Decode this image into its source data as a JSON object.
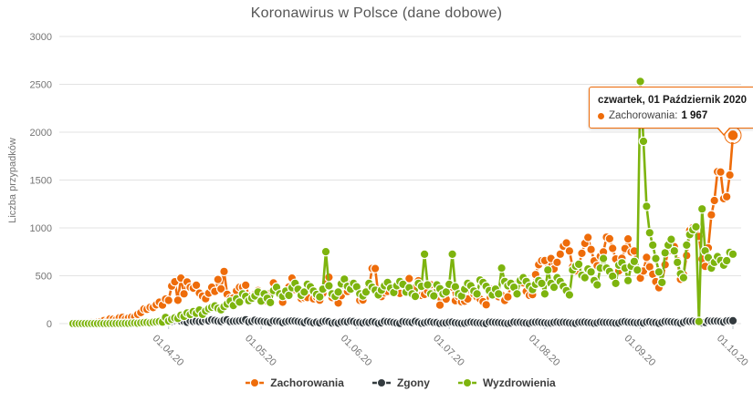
{
  "title": "Koronawirus w Polsce (dane dobowe)",
  "y_axis": {
    "label": "Liczba przypadków",
    "tick_labels": [
      "0",
      "500",
      "1000",
      "1500",
      "2000",
      "2500",
      "3000"
    ]
  },
  "x_axis": {
    "tick_labels": [
      "01.04.20",
      "01.05.20",
      "01.06.20",
      "01.07.20",
      "01.08.20",
      "01.09.20",
      "01.10.20"
    ]
  },
  "legend": [
    {
      "label": "Zachorowania",
      "color": "#ee6c0a"
    },
    {
      "label": "Zgony",
      "color": "#333b3f"
    },
    {
      "label": "Wyzdrowienia",
      "color": "#7db40e"
    }
  ],
  "tooltip": {
    "date_label": "czwartek, 01 Październik 2020",
    "series_label": "Zachorowania:",
    "value": "1 967"
  },
  "colors": {
    "grid": "#e3e3e3",
    "axis_text": "#757575",
    "tick_mark": "#b8c4cc",
    "background": "#ffffff"
  },
  "chart_data": {
    "type": "line",
    "title": "Koronawirus w Polsce (dane dobowe)",
    "ylabel": "Liczba przypadków",
    "xlabel": "",
    "ylim": [
      0,
      3000
    ],
    "grid": true,
    "legend_position": "bottom",
    "start_date": "2020-03-01",
    "end_date": "2020-10-01",
    "x_ticks": [
      {
        "label": "01.04.20",
        "day": 31
      },
      {
        "label": "01.05.20",
        "day": 61
      },
      {
        "label": "01.06.20",
        "day": 92
      },
      {
        "label": "01.07.20",
        "day": 122
      },
      {
        "label": "01.08.20",
        "day": 153
      },
      {
        "label": "01.09.20",
        "day": 184
      },
      {
        "label": "01.10.20",
        "day": 214
      }
    ],
    "highlight": {
      "series": "Zachorowania",
      "date": "2020-10-01",
      "point_index": 214,
      "value": 1967
    },
    "series": [
      {
        "name": "Zachorowania",
        "color": "#ee6c0a",
        "values": [
          0,
          0,
          1,
          2,
          5,
          5,
          11,
          7,
          14,
          20,
          31,
          21,
          49,
          46,
          40,
          61,
          65,
          49,
          59,
          68,
          70,
          96,
          115,
          152,
          150,
          170,
          168,
          196,
          224,
          193,
          256,
          243,
          392,
          437,
          244,
          475,
          311,
          435,
          380,
          370,
          401,
          318,
          288,
          260,
          318,
          380,
          336,
          461,
          363,
          545,
          306,
          263,
          268,
          342,
          380,
          381,
          401,
          285,
          263,
          308,
          346,
          295,
          260,
          235,
          318,
          425,
          340,
          309,
          224,
          345,
          383,
          475,
          356,
          364,
          262,
          270,
          272,
          356,
          259,
          276,
          245,
          315,
          425,
          485,
          272,
          287,
          215,
          292,
          399,
          336,
          412,
          383,
          396,
          243,
          247,
          340,
          380,
          576,
          575,
          300,
          283,
          321,
          336,
          375,
          333,
          388,
          315,
          407,
          326,
          470,
          314,
          375,
          448,
          295,
          305,
          341,
          407,
          290,
          336,
          193,
          301,
          256,
          371,
          381,
          239,
          283,
          228,
          234,
          257,
          355,
          309,
          277,
          257,
          229,
          197,
          336,
          357,
          315,
          281,
          296,
          242,
          279,
          399,
          384,
          418,
          458,
          426,
          337,
          295,
          303,
          512,
          615,
          657,
          658,
          548,
          680,
          571,
          640,
          726,
          809,
          843,
          759,
          594,
          551,
          601,
          734,
          838,
          900,
          774,
          655,
          605,
          704,
          749,
          903,
          887,
          786,
          675,
          551,
          682,
          784,
          885,
          748,
          758,
          563,
          475,
          550,
          691,
          593,
          515,
          438,
          375,
          436,
          615,
          757,
          847,
          804,
          657,
          463,
          512,
          711,
          974,
          1002,
          1012,
          910,
          674,
          598,
          791,
          1136,
          1286,
          1587,
          1584,
          1306,
          1326,
          1552,
          1967
        ]
      },
      {
        "name": "Zgony",
        "color": "#333b3f",
        "values": [
          0,
          0,
          0,
          0,
          0,
          0,
          0,
          0,
          0,
          0,
          0,
          1,
          2,
          1,
          1,
          2,
          1,
          0,
          2,
          2,
          3,
          4,
          2,
          6,
          8,
          6,
          9,
          10,
          11,
          14,
          18,
          18,
          25,
          34,
          40,
          27,
          24,
          14,
          30,
          23,
          27,
          20,
          24,
          38,
          29,
          40,
          32,
          25,
          23,
          36,
          40,
          21,
          25,
          26,
          29,
          32,
          40,
          18,
          24,
          35,
          26,
          25,
          21,
          17,
          12,
          27,
          24,
          22,
          10,
          20,
          26,
          28,
          27,
          22,
          16,
          10,
          25,
          15,
          9,
          14,
          8,
          22,
          26,
          21,
          7,
          11,
          5,
          15,
          20,
          17,
          26,
          22,
          11,
          12,
          8,
          15,
          11,
          19,
          14,
          4,
          9,
          23,
          18,
          17,
          12,
          7,
          3,
          21,
          17,
          14,
          12,
          23,
          14,
          4,
          9,
          15,
          18,
          12,
          11,
          2,
          6,
          8,
          14,
          16,
          9,
          5,
          3,
          5,
          11,
          15,
          12,
          9,
          6,
          4,
          2,
          15,
          14,
          12,
          10,
          8,
          5,
          2,
          7,
          16,
          12,
          13,
          9,
          6,
          3,
          12,
          14,
          16,
          11,
          9,
          5,
          6,
          12,
          15,
          11,
          14,
          12,
          8,
          5,
          3,
          13,
          14,
          16,
          11,
          9,
          4,
          8,
          15,
          13,
          12,
          10,
          9,
          5,
          6,
          17,
          21,
          14,
          13,
          10,
          8,
          11,
          7,
          16,
          19,
          12,
          10,
          4,
          12,
          22,
          21,
          18,
          15,
          11,
          5,
          13,
          25,
          23,
          26,
          20,
          14,
          8,
          12,
          29,
          25,
          27,
          26,
          22,
          16,
          29,
          30,
          30
        ]
      },
      {
        "name": "Wyzdrowienia",
        "color": "#7db40e",
        "values": [
          0,
          0,
          0,
          0,
          0,
          0,
          0,
          0,
          0,
          1,
          0,
          0,
          1,
          1,
          2,
          1,
          1,
          3,
          2,
          5,
          7,
          4,
          8,
          10,
          12,
          9,
          14,
          18,
          22,
          16,
          65,
          28,
          45,
          60,
          54,
          88,
          75,
          110,
          95,
          125,
          108,
          142,
          96,
          132,
          155,
          170,
          185,
          160,
          145,
          178,
          205,
          235,
          190,
          260,
          225,
          310,
          285,
          240,
          265,
          290,
          330,
          235,
          310,
          265,
          220,
          345,
          380,
          310,
          285,
          340,
          295,
          375,
          420,
          360,
          295,
          330,
          410,
          385,
          340,
          305,
          280,
          360,
          751,
          395,
          310,
          285,
          330,
          415,
          465,
          390,
          360,
          420,
          385,
          310,
          290,
          330,
          420,
          380,
          350,
          300,
          350,
          395,
          430,
          370,
          325,
          395,
          440,
          410,
          330,
          375,
          310,
          285,
          420,
          390,
          725,
          405,
          310,
          290,
          405,
          365,
          310,
          330,
          410,
          725,
          385,
          310,
          290,
          360,
          420,
          395,
          340,
          310,
          455,
          430,
          390,
          345,
          300,
          360,
          310,
          580,
          440,
          395,
          420,
          380,
          310,
          450,
          480,
          440,
          390,
          355,
          410,
          450,
          420,
          310,
          560,
          420,
          380,
          480,
          440,
          390,
          345,
          300,
          560,
          600,
          620,
          505,
          480,
          570,
          540,
          450,
          405,
          580,
          680,
          580,
          545,
          495,
          420,
          610,
          635,
          580,
          450,
          600,
          650,
          560,
          2530,
          1905,
          1226,
          950,
          820,
          680,
          540,
          430,
          740,
          820,
          880,
          760,
          640,
          520,
          480,
          820,
          930,
          980,
          1010,
          22,
          1198,
          760,
          690,
          580,
          640,
          700,
          660,
          610,
          657,
          745,
          726
        ]
      }
    ]
  }
}
